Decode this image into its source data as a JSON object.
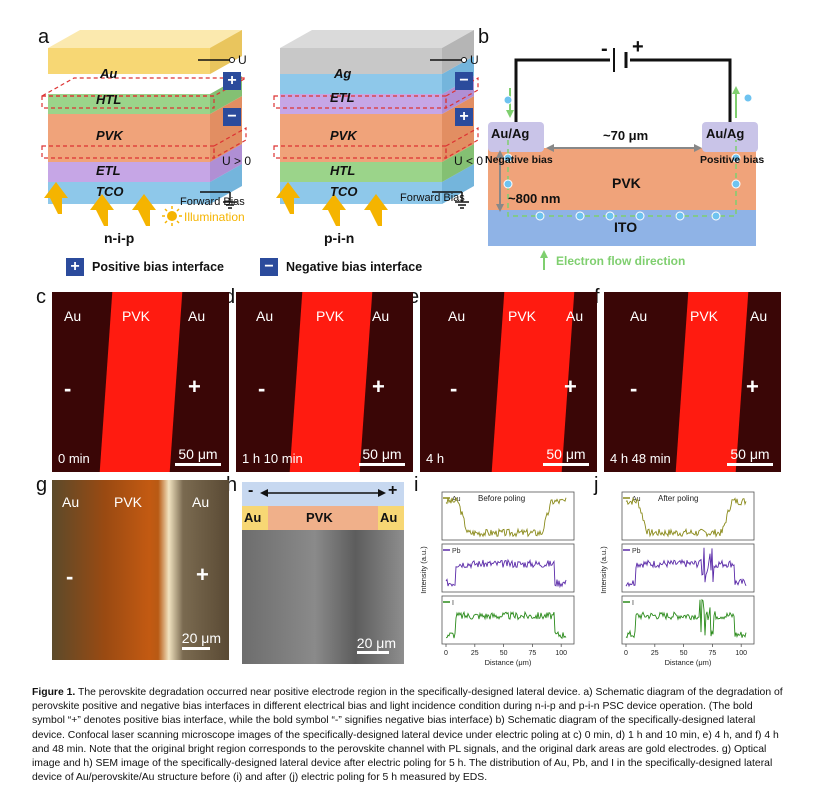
{
  "panel_letters": {
    "a": "a",
    "b": "b",
    "c": "c",
    "d": "d",
    "e": "e",
    "f": "f",
    "g": "g",
    "h": "h",
    "i": "i",
    "j": "j"
  },
  "panel_a": {
    "nip": {
      "layers": [
        "Au",
        "HTL",
        "PVK",
        "ETL",
        "TCO"
      ],
      "bias_label": "U > 0",
      "terminal": "U",
      "bias_type": "Forward Bias",
      "name": "n-i-p"
    },
    "pin": {
      "layers": [
        "Ag",
        "ETL",
        "PVK",
        "HTL",
        "TCO"
      ],
      "bias_label": "U < 0",
      "terminal": "U",
      "bias_type": "Forward Bias",
      "name": "p-i-n"
    },
    "illumination": "Illumination",
    "legend_positive": "Positive bias interface",
    "legend_negative": "Negative bias interface",
    "plus": "+",
    "minus": "−"
  },
  "panel_b": {
    "battery_minus": "-",
    "battery_plus": "+",
    "left_electrode": "Au/Ag",
    "right_electrode": "Au/Ag",
    "distance": "~70 μm",
    "thickness": "~800 nm",
    "negative_bias": "Negative bias",
    "positive_bias": "Positive bias",
    "pvk": "PVK",
    "ito": "ITO",
    "electron_flow": "Electron flow direction"
  },
  "micrographs": [
    {
      "time": "0 min",
      "left": "Au",
      "center": "PVK",
      "right": "Au",
      "minus": "-",
      "plus": "+",
      "scale": "50 μm"
    },
    {
      "time": "1 h 10 min",
      "left": "Au",
      "center": "PVK",
      "right": "Au",
      "minus": "-",
      "plus": "+",
      "scale": "50 μm"
    },
    {
      "time": "4 h",
      "left": "Au",
      "center": "PVK",
      "right": "Au",
      "minus": "-",
      "plus": "+",
      "scale": "50 μm"
    },
    {
      "time": "4 h 48 min",
      "left": "Au",
      "center": "PVK",
      "right": "Au",
      "minus": "-",
      "plus": "+",
      "scale": "50 μm"
    }
  ],
  "panel_g": {
    "left": "Au",
    "center": "PVK",
    "right": "Au",
    "minus": "-",
    "plus": "+",
    "scale": "20 μm"
  },
  "panel_h": {
    "minus": "-",
    "plus": "+",
    "left": "Au",
    "center": "PVK",
    "right": "Au",
    "scale": "20 μm"
  },
  "panel_i": {
    "title": "Before poling",
    "ylabel": "Intensity (a.u.)",
    "xlabel": "Distance (μm)",
    "ticks": [
      "0",
      "25",
      "50",
      "75",
      "100"
    ],
    "channels": [
      "Au",
      "Pb",
      "I"
    ]
  },
  "panel_j": {
    "title": "After poling",
    "ylabel": "Intensity (a.u.)",
    "xlabel": "Distance (μm)",
    "ticks": [
      "0",
      "25",
      "50",
      "75",
      "100"
    ],
    "channels": [
      "Au",
      "Pb",
      "I"
    ]
  },
  "colors": {
    "au": "#f7d774",
    "htl": "#9bd48a",
    "pvk": "#f0a37a",
    "etl": "#c6a6e6",
    "tco": "#8ec8ea",
    "ag": "#c8c8c8",
    "navy": "#2b4b9c",
    "arrow": "#f5b400",
    "eds_au": "#8a8a1a",
    "eds_pb": "#5a2aa8",
    "eds_i": "#2a8a1a"
  },
  "caption": {
    "label": "Figure 1.",
    "text": " The perovskite degradation occurred near positive electrode region in the specifically-designed lateral device. a) Schematic diagram of the degradation of perovskite positive and negative bias interfaces in different electrical bias and light incidence condition during n-i-p and p-i-n PSC device operation. (The bold symbol “+” denotes positive bias interface, while the bold symbol “-” signifies negative bias interface) b) Schematic diagram of the specifically-designed lateral device. Confocal laser scanning microscope images of the specifically-designed lateral device under electric poling at c) 0 min, d) 1 h and 10 min, e) 4 h, and f) 4 h and 48 min. Note that the original bright region corresponds to the perovskite channel with PL signals, and the original dark areas are gold electrodes. g) Optical image and h) SEM image of the specifically-designed lateral device after electric poling for 5 h. The distribution of Au, Pb, and I in the specifically-designed lateral device of Au/perovskite/Au structure before (i) and after (j) electric poling for 5 h measured by EDS."
  }
}
